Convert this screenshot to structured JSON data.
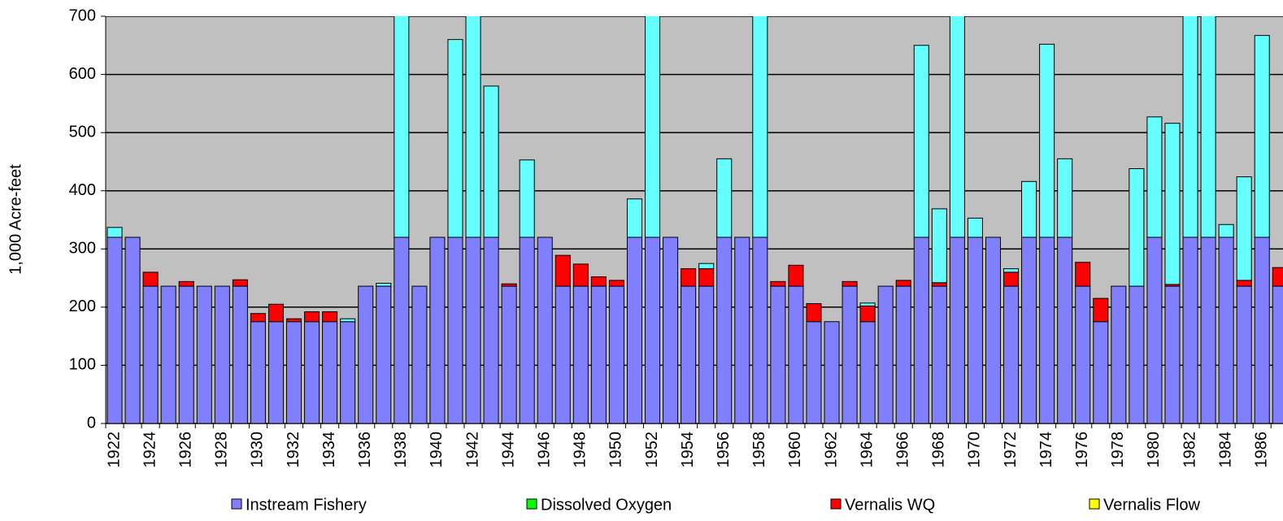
{
  "chart_data": {
    "type": "bar",
    "stacked": true,
    "y_label": "1,000 Acre-feet",
    "categories": [
      "1922",
      null,
      "1924",
      null,
      "1926",
      null,
      "1928",
      null,
      "1930",
      null,
      "1932",
      null,
      "1934",
      null,
      "1936",
      null,
      "1938",
      null,
      "1940",
      null,
      "1942",
      null,
      "1944",
      null,
      "1946",
      null,
      "1948",
      null,
      "1950",
      null,
      "1952",
      null,
      "1954",
      null,
      "1956",
      null,
      "1958",
      null,
      "1960",
      null,
      "1962",
      null,
      "1964",
      null,
      "1966",
      null,
      "1968",
      null,
      "1970",
      null,
      "1972",
      null,
      "1974",
      null,
      "1976",
      null,
      "1978",
      null,
      "1980",
      null,
      "1982",
      null,
      "1984",
      null,
      "1986",
      null
    ],
    "series": [
      {
        "name": "Instream Fishery",
        "color": "#8080ff",
        "values": [
          320,
          320,
          236,
          236,
          236,
          236,
          236,
          236,
          175,
          175,
          175,
          175,
          175,
          175,
          236,
          236,
          320,
          236,
          320,
          320,
          320,
          320,
          236,
          320,
          320,
          236,
          236,
          236,
          236,
          320,
          320,
          320,
          236,
          236,
          320,
          320,
          320,
          236,
          236,
          175,
          175,
          236,
          175,
          236,
          236,
          320,
          236,
          320,
          320,
          320,
          236,
          320,
          320,
          320,
          236,
          175,
          236,
          236,
          320,
          236,
          320,
          320,
          320,
          236,
          320,
          236
        ]
      },
      {
        "name": "Dissolved Oxygen",
        "color": "#00ff00",
        "values": [
          0,
          0,
          0,
          0,
          0,
          0,
          0,
          0,
          0,
          0,
          0,
          0,
          0,
          0,
          0,
          0,
          0,
          0,
          0,
          0,
          0,
          0,
          0,
          0,
          0,
          0,
          0,
          0,
          0,
          0,
          0,
          0,
          0,
          0,
          0,
          0,
          0,
          0,
          0,
          0,
          0,
          0,
          0,
          0,
          0,
          0,
          0,
          0,
          0,
          0,
          0,
          0,
          0,
          0,
          0,
          0,
          0,
          0,
          0,
          0,
          0,
          0,
          0,
          0,
          0,
          0
        ]
      },
      {
        "name": "Vernalis WQ",
        "color": "#ff0000",
        "values": [
          0,
          0,
          24,
          0,
          8,
          0,
          0,
          11,
          14,
          30,
          5,
          17,
          17,
          0,
          0,
          0,
          0,
          0,
          0,
          0,
          0,
          0,
          4,
          0,
          0,
          53,
          38,
          16,
          10,
          0,
          0,
          0,
          30,
          30,
          0,
          0,
          0,
          8,
          36,
          31,
          0,
          8,
          27,
          0,
          10,
          0,
          6,
          0,
          0,
          0,
          24,
          0,
          0,
          0,
          41,
          40,
          0,
          0,
          0,
          3,
          0,
          0,
          0,
          10,
          0,
          32
        ]
      },
      {
        "name": "Vernalis Flow",
        "color": "#ffff00",
        "values": [
          0,
          0,
          0,
          0,
          0,
          0,
          0,
          0,
          0,
          0,
          0,
          0,
          0,
          0,
          0,
          0,
          0,
          0,
          0,
          0,
          0,
          0,
          0,
          0,
          0,
          0,
          0,
          0,
          0,
          0,
          0,
          0,
          0,
          0,
          0,
          0,
          0,
          0,
          0,
          0,
          0,
          0,
          0,
          0,
          0,
          0,
          0,
          0,
          0,
          0,
          0,
          0,
          0,
          0,
          0,
          0,
          0,
          0,
          0,
          0,
          0,
          0,
          0,
          0,
          0,
          0
        ]
      },
      {
        "color": "#66ffff",
        "values": [
          17,
          0,
          0,
          0,
          0,
          0,
          0,
          0,
          0,
          0,
          0,
          0,
          0,
          5,
          0,
          5,
          400,
          0,
          0,
          340,
          420,
          260,
          0,
          133,
          0,
          0,
          0,
          0,
          0,
          66,
          420,
          0,
          0,
          9,
          135,
          0,
          420,
          0,
          0,
          0,
          0,
          0,
          5,
          0,
          0,
          330,
          127,
          420,
          33,
          0,
          6,
          96,
          332,
          135,
          0,
          0,
          0,
          202,
          207,
          277,
          420,
          420,
          22,
          178,
          347,
          0
        ]
      }
    ],
    "ylim": [
      0,
      700
    ],
    "yticks": [
      0,
      100,
      200,
      300,
      400,
      500,
      600,
      700
    ],
    "grid": true
  }
}
